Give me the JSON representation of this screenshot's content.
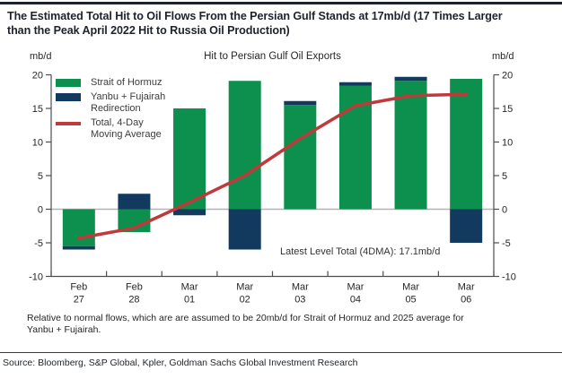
{
  "header": {
    "title": "The Estimated Total Hit to Oil Flows From the Persian Gulf Stands at 17mb/d (17 Times Larger\nthan the Peak April 2022 Hit to Russia Oil Production)"
  },
  "chart": {
    "title": "Hit to Persian Gulf Oil Exports",
    "left_axis_unit": "mb/d",
    "right_axis_unit": "mb/d",
    "annotation": "Latest Level Total (4DMA): 17.1mb/d",
    "legend": [
      {
        "swatch": "box",
        "color": "#0d8f4d",
        "label": "Strait of Hormuz"
      },
      {
        "swatch": "box",
        "color": "#123a5e",
        "label": "Yanbu + Fujairah\nRedirection"
      },
      {
        "swatch": "line",
        "color": "#bf3a3a",
        "label": "Total, 4-Day\nMoving Average"
      }
    ]
  },
  "chart_data": {
    "type": "bar",
    "title": "Hit to Persian Gulf Oil Exports",
    "ylabel": "mb/d",
    "ylim": [
      -10,
      20
    ],
    "ytick_step": 5,
    "grid": "zero-line-only",
    "legend_position": "top-left",
    "categories": [
      "Feb 27",
      "Feb 28",
      "Mar 01",
      "Mar 02",
      "Mar 03",
      "Mar 04",
      "Mar 05",
      "Mar 06"
    ],
    "series": [
      {
        "name": "Strait of Hormuz",
        "type": "bar",
        "color": "#0d8f4d",
        "values": [
          -5.5,
          -3.4,
          15.0,
          19.1,
          15.5,
          18.4,
          19.1,
          19.4
        ]
      },
      {
        "name": "Yanbu + Fujairah Redirection",
        "type": "bar",
        "color": "#123a5e",
        "values": [
          -0.5,
          2.3,
          -0.9,
          -6.0,
          0.6,
          0.5,
          0.6,
          -5.0
        ]
      },
      {
        "name": "Total, 4-Day Moving Average",
        "type": "line",
        "color": "#bf3a3a",
        "values": [
          -4.3,
          -2.8,
          1.0,
          5.0,
          10.5,
          15.4,
          16.9,
          17.1
        ]
      }
    ],
    "latest_level_total_4dma": "17.1mb/d"
  },
  "footnote": "Relative to normal flows, which are are assumed to be 20mb/d for Strait of Hormuz and 2025 average for\nYanbu + Fujairah.",
  "source": "Source: Bloomberg, S&P Global, Kpler, Goldman Sachs Global Investment Research"
}
